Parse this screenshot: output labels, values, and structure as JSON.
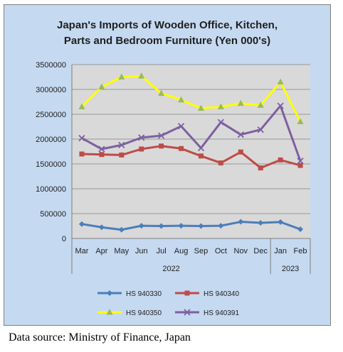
{
  "chart_data": {
    "type": "line",
    "title_lines": [
      "Japan's Imports of  Wooden  Office, Kitchen,",
      "Parts and Bedroom Furniture (Yen 000's)"
    ],
    "categories": [
      "Mar",
      "Apr",
      "May",
      "Jun",
      "Jul",
      "Aug",
      "Sep",
      "Oct",
      "Nov",
      "Dec",
      "Jan",
      "Feb"
    ],
    "year_groups": [
      {
        "label": "2022",
        "from": 0,
        "to": 9
      },
      {
        "label": "2023",
        "from": 10,
        "to": 11
      }
    ],
    "y_ticks": [
      "3500000",
      "3000000",
      "2500000",
      "2000000",
      "1500000",
      "1000000",
      "500000",
      "0"
    ],
    "ylim": [
      0,
      3500000
    ],
    "grid": "horizontal",
    "legend_position": "bottom",
    "series": [
      {
        "name": "HS 940330",
        "color": "#4a7ebb",
        "marker": "diamond",
        "values": [
          290000,
          225000,
          175000,
          255000,
          250000,
          255000,
          250000,
          255000,
          335000,
          315000,
          330000,
          185000
        ]
      },
      {
        "name": "HS 940340",
        "color": "#be4b48",
        "marker": "square",
        "values": [
          1700000,
          1690000,
          1680000,
          1800000,
          1860000,
          1810000,
          1660000,
          1520000,
          1740000,
          1420000,
          1580000,
          1470000
        ]
      },
      {
        "name": "HS 940350",
        "color": "#ffff00",
        "marker": "triangle",
        "values": [
          2650000,
          3050000,
          3250000,
          3270000,
          2920000,
          2790000,
          2620000,
          2650000,
          2720000,
          2680000,
          3150000,
          2350000
        ]
      },
      {
        "name": "HS 940391",
        "color": "#7d60a0",
        "marker": "x",
        "values": [
          2020000,
          1800000,
          1880000,
          2030000,
          2070000,
          2260000,
          1820000,
          2340000,
          2090000,
          2190000,
          2670000,
          1560000
        ]
      }
    ]
  },
  "source_text": "Data source: Ministry of Finance, Japan"
}
